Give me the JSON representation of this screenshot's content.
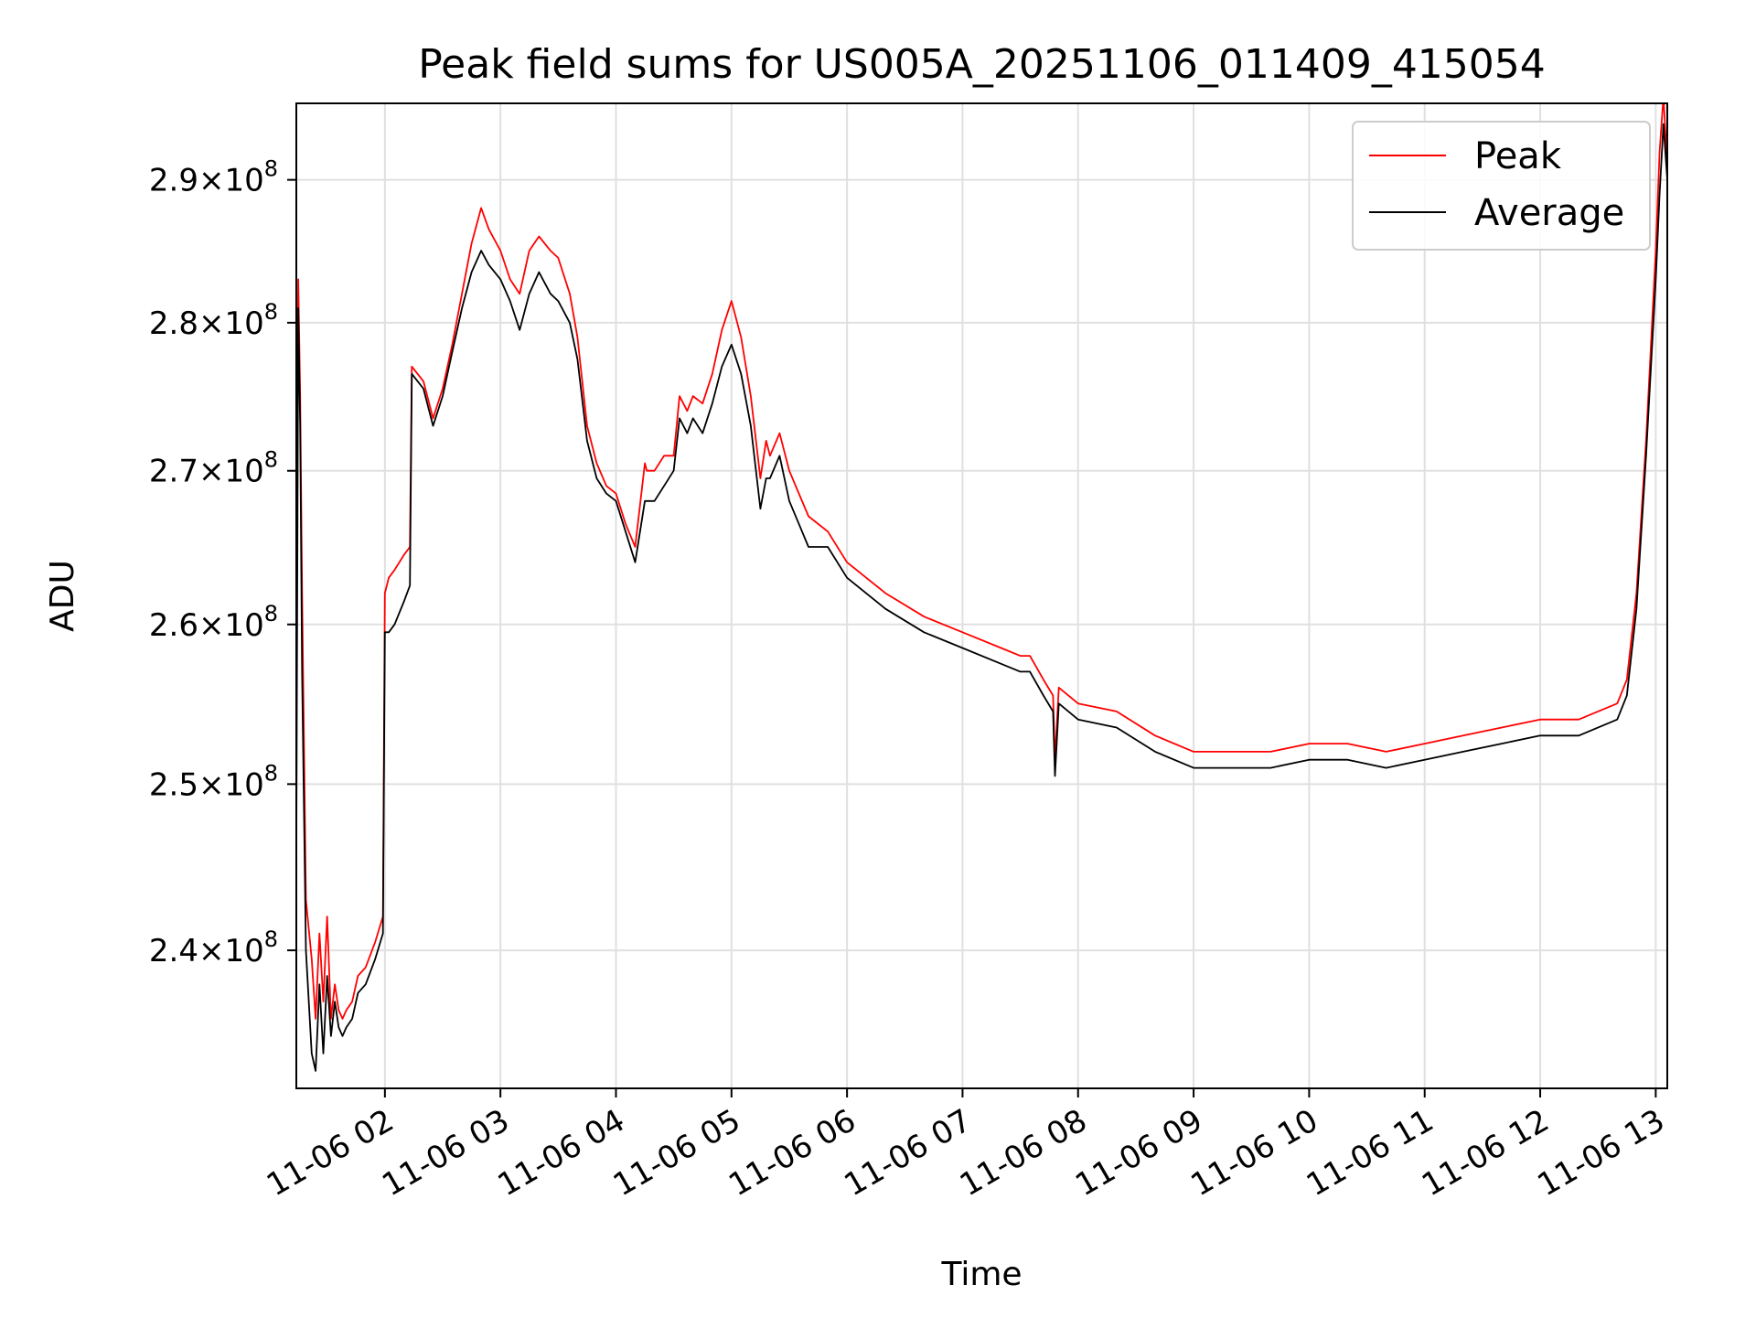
{
  "chart_data": {
    "type": "line",
    "title": "Peak field sums for US005A_20251106_011409_415054",
    "xlabel": "Time",
    "ylabel": "ADU",
    "x_ticks": [
      "11-06 02",
      "11-06 03",
      "11-06 04",
      "11-06 05",
      "11-06 06",
      "11-06 07",
      "11-06 08",
      "11-06 09",
      "11-06 10",
      "11-06 11",
      "11-06 12",
      "11-06 13"
    ],
    "y_ticks": [
      {
        "mantissa": "2.4",
        "exp": "8",
        "value": 240000000
      },
      {
        "mantissa": "2.5",
        "exp": "8",
        "value": 250000000
      },
      {
        "mantissa": "2.6",
        "exp": "8",
        "value": 260000000
      },
      {
        "mantissa": "2.7",
        "exp": "8",
        "value": 270000000
      },
      {
        "mantissa": "2.8",
        "exp": "8",
        "value": 280000000
      },
      {
        "mantissa": "2.9",
        "exp": "8",
        "value": 290000000
      }
    ],
    "x_range": [
      "2025-11-06 01:14",
      "2025-11-06 13:06"
    ],
    "ylim": [
      232000000,
      295500000
    ],
    "y_scale": "log",
    "grid": true,
    "legend_position": "top-right",
    "series": [
      {
        "name": "Peak",
        "color": "#ff0000",
        "x": [
          "2025-11-06 01:14",
          "2025-11-06 01:15",
          "2025-11-06 01:16",
          "2025-11-06 01:17",
          "2025-11-06 01:19",
          "2025-11-06 01:22",
          "2025-11-06 01:24",
          "2025-11-06 01:26",
          "2025-11-06 01:28",
          "2025-11-06 01:30",
          "2025-11-06 01:32",
          "2025-11-06 01:34",
          "2025-11-06 01:36",
          "2025-11-06 01:38",
          "2025-11-06 01:40",
          "2025-11-06 01:43",
          "2025-11-06 01:46",
          "2025-11-06 01:50",
          "2025-11-06 01:55",
          "2025-11-06 01:59",
          "2025-11-06 02:00",
          "2025-11-06 02:02",
          "2025-11-06 02:05",
          "2025-11-06 02:10",
          "2025-11-06 02:13",
          "2025-11-06 02:14",
          "2025-11-06 02:20",
          "2025-11-06 02:25",
          "2025-11-06 02:30",
          "2025-11-06 02:35",
          "2025-11-06 02:40",
          "2025-11-06 02:45",
          "2025-11-06 02:50",
          "2025-11-06 02:54",
          "2025-11-06 03:00",
          "2025-11-06 03:05",
          "2025-11-06 03:10",
          "2025-11-06 03:15",
          "2025-11-06 03:20",
          "2025-11-06 03:26",
          "2025-11-06 03:30",
          "2025-11-06 03:36",
          "2025-11-06 03:40",
          "2025-11-06 03:45",
          "2025-11-06 03:50",
          "2025-11-06 03:55",
          "2025-11-06 04:00",
          "2025-11-06 04:05",
          "2025-11-06 04:10",
          "2025-11-06 04:15",
          "2025-11-06 04:16",
          "2025-11-06 04:20",
          "2025-11-06 04:25",
          "2025-11-06 04:30",
          "2025-11-06 04:33",
          "2025-11-06 04:37",
          "2025-11-06 04:40",
          "2025-11-06 04:45",
          "2025-11-06 04:50",
          "2025-11-06 04:55",
          "2025-11-06 05:00",
          "2025-11-06 05:05",
          "2025-11-06 05:10",
          "2025-11-06 05:15",
          "2025-11-06 05:18",
          "2025-11-06 05:20",
          "2025-11-06 05:25",
          "2025-11-06 05:30",
          "2025-11-06 05:35",
          "2025-11-06 05:40",
          "2025-11-06 05:50",
          "2025-11-06 06:00",
          "2025-11-06 06:20",
          "2025-11-06 06:40",
          "2025-11-06 07:00",
          "2025-11-06 07:20",
          "2025-11-06 07:30",
          "2025-11-06 07:35",
          "2025-11-06 07:42",
          "2025-11-06 07:47",
          "2025-11-06 07:48",
          "2025-11-06 07:50",
          "2025-11-06 08:00",
          "2025-11-06 08:20",
          "2025-11-06 08:40",
          "2025-11-06 09:00",
          "2025-11-06 09:20",
          "2025-11-06 09:40",
          "2025-11-06 10:00",
          "2025-11-06 10:20",
          "2025-11-06 10:40",
          "2025-11-06 11:00",
          "2025-11-06 11:20",
          "2025-11-06 11:40",
          "2025-11-06 12:00",
          "2025-11-06 12:20",
          "2025-11-06 12:40",
          "2025-11-06 12:45",
          "2025-11-06 12:50",
          "2025-11-06 12:55",
          "2025-11-06 13:00",
          "2025-11-06 13:02",
          "2025-11-06 13:04",
          "2025-11-06 13:06"
        ],
        "y": [
          258000000,
          283000000,
          275000000,
          262000000,
          243000000,
          239500000,
          236000000,
          241000000,
          237000000,
          242000000,
          236000000,
          238000000,
          236500000,
          236000000,
          236500000,
          237000000,
          238500000,
          239000000,
          240500000,
          242000000,
          262000000,
          263000000,
          263500000,
          264500000,
          265000000,
          277000000,
          276000000,
          273500000,
          275500000,
          278500000,
          282000000,
          285500000,
          288000000,
          286500000,
          285000000,
          283000000,
          282000000,
          285000000,
          286000000,
          285000000,
          284500000,
          282000000,
          279000000,
          273000000,
          270500000,
          269000000,
          268500000,
          266500000,
          265000000,
          270500000,
          270000000,
          270000000,
          271000000,
          271000000,
          275000000,
          274000000,
          275000000,
          274500000,
          276500000,
          279500000,
          281500000,
          279000000,
          275000000,
          269500000,
          272000000,
          271000000,
          272500000,
          270000000,
          268500000,
          267000000,
          266000000,
          264000000,
          262000000,
          260500000,
          259500000,
          258500000,
          258000000,
          258000000,
          256500000,
          255500000,
          251500000,
          256000000,
          255000000,
          254500000,
          253000000,
          252000000,
          252000000,
          252000000,
          252500000,
          252500000,
          252000000,
          252500000,
          253000000,
          253500000,
          254000000,
          254000000,
          255000000,
          256500000,
          262000000,
          272000000,
          285000000,
          292000000,
          296000000,
          291000000
        ]
      },
      {
        "name": "Average",
        "color": "#000000",
        "x": [
          "2025-11-06 01:14",
          "2025-11-06 01:15",
          "2025-11-06 01:16",
          "2025-11-06 01:17",
          "2025-11-06 01:19",
          "2025-11-06 01:22",
          "2025-11-06 01:24",
          "2025-11-06 01:26",
          "2025-11-06 01:28",
          "2025-11-06 01:30",
          "2025-11-06 01:32",
          "2025-11-06 01:34",
          "2025-11-06 01:36",
          "2025-11-06 01:38",
          "2025-11-06 01:40",
          "2025-11-06 01:43",
          "2025-11-06 01:46",
          "2025-11-06 01:50",
          "2025-11-06 01:55",
          "2025-11-06 01:59",
          "2025-11-06 02:00",
          "2025-11-06 02:02",
          "2025-11-06 02:05",
          "2025-11-06 02:10",
          "2025-11-06 02:13",
          "2025-11-06 02:14",
          "2025-11-06 02:20",
          "2025-11-06 02:25",
          "2025-11-06 02:30",
          "2025-11-06 02:35",
          "2025-11-06 02:40",
          "2025-11-06 02:45",
          "2025-11-06 02:50",
          "2025-11-06 02:54",
          "2025-11-06 03:00",
          "2025-11-06 03:05",
          "2025-11-06 03:10",
          "2025-11-06 03:15",
          "2025-11-06 03:20",
          "2025-11-06 03:26",
          "2025-11-06 03:30",
          "2025-11-06 03:36",
          "2025-11-06 03:40",
          "2025-11-06 03:45",
          "2025-11-06 03:50",
          "2025-11-06 03:55",
          "2025-11-06 04:00",
          "2025-11-06 04:05",
          "2025-11-06 04:10",
          "2025-11-06 04:15",
          "2025-11-06 04:16",
          "2025-11-06 04:20",
          "2025-11-06 04:25",
          "2025-11-06 04:30",
          "2025-11-06 04:33",
          "2025-11-06 04:37",
          "2025-11-06 04:40",
          "2025-11-06 04:45",
          "2025-11-06 04:50",
          "2025-11-06 04:55",
          "2025-11-06 05:00",
          "2025-11-06 05:05",
          "2025-11-06 05:10",
          "2025-11-06 05:15",
          "2025-11-06 05:18",
          "2025-11-06 05:20",
          "2025-11-06 05:25",
          "2025-11-06 05:30",
          "2025-11-06 05:35",
          "2025-11-06 05:40",
          "2025-11-06 05:50",
          "2025-11-06 06:00",
          "2025-11-06 06:20",
          "2025-11-06 06:40",
          "2025-11-06 07:00",
          "2025-11-06 07:20",
          "2025-11-06 07:30",
          "2025-11-06 07:35",
          "2025-11-06 07:42",
          "2025-11-06 07:47",
          "2025-11-06 07:48",
          "2025-11-06 07:50",
          "2025-11-06 08:00",
          "2025-11-06 08:20",
          "2025-11-06 08:40",
          "2025-11-06 09:00",
          "2025-11-06 09:20",
          "2025-11-06 09:40",
          "2025-11-06 10:00",
          "2025-11-06 10:20",
          "2025-11-06 10:40",
          "2025-11-06 11:00",
          "2025-11-06 11:20",
          "2025-11-06 11:40",
          "2025-11-06 12:00",
          "2025-11-06 12:20",
          "2025-11-06 12:40",
          "2025-11-06 12:45",
          "2025-11-06 12:50",
          "2025-11-06 12:55",
          "2025-11-06 13:00",
          "2025-11-06 13:02",
          "2025-11-06 13:04",
          "2025-11-06 13:06"
        ],
        "y": [
          246000000,
          281000000,
          273000000,
          257000000,
          240000000,
          234000000,
          233000000,
          238000000,
          234000000,
          238500000,
          235000000,
          237000000,
          235500000,
          235000000,
          235500000,
          236000000,
          237500000,
          238000000,
          239500000,
          241000000,
          259500000,
          259500000,
          260000000,
          261500000,
          262500000,
          276500000,
          275500000,
          273000000,
          275000000,
          278000000,
          281000000,
          283500000,
          285000000,
          284000000,
          283000000,
          281500000,
          279500000,
          282000000,
          283500000,
          282000000,
          281500000,
          280000000,
          277500000,
          272000000,
          269500000,
          268500000,
          268000000,
          266000000,
          264000000,
          268000000,
          268000000,
          268000000,
          269000000,
          270000000,
          273500000,
          272500000,
          273500000,
          272500000,
          274500000,
          277000000,
          278500000,
          276500000,
          273000000,
          267500000,
          269500000,
          269500000,
          271000000,
          268000000,
          266500000,
          265000000,
          265000000,
          263000000,
          261000000,
          259500000,
          258500000,
          257500000,
          257000000,
          257000000,
          255500000,
          254500000,
          250500000,
          255000000,
          254000000,
          253500000,
          252000000,
          251000000,
          251000000,
          251000000,
          251500000,
          251500000,
          251000000,
          251500000,
          252000000,
          252500000,
          253000000,
          253000000,
          254000000,
          255500000,
          261000000,
          271000000,
          283000000,
          289000000,
          294000000,
          290000000
        ]
      }
    ]
  }
}
